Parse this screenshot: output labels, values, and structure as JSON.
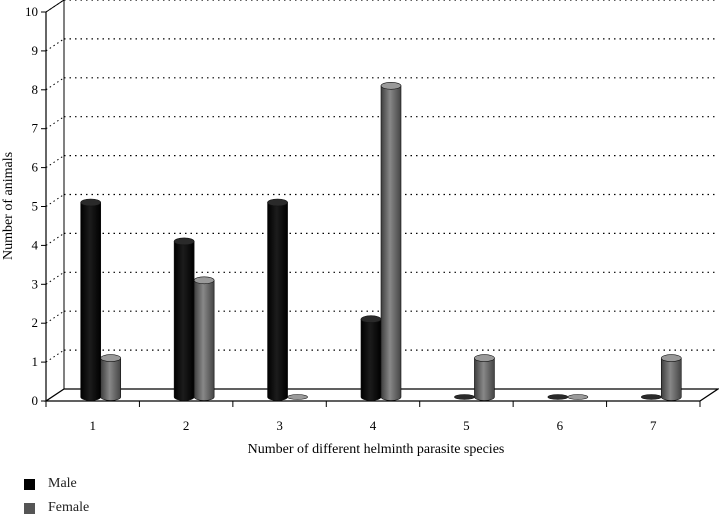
{
  "chart_data": {
    "type": "bar",
    "style": "3d-cylinder",
    "title": "",
    "xlabel": "Number of different helminth parasite species",
    "ylabel": "Number of animals",
    "categories": [
      "1",
      "2",
      "3",
      "4",
      "5",
      "6",
      "7"
    ],
    "series": [
      {
        "name": "Male",
        "values": [
          5,
          4,
          5,
          2,
          0,
          0,
          0
        ],
        "color": "#000000"
      },
      {
        "name": "Female",
        "values": [
          1,
          3,
          0,
          8,
          1,
          0,
          1
        ],
        "color": "#555555"
      }
    ],
    "ylim": [
      0,
      10
    ],
    "yticks": [
      "0",
      "1",
      "2",
      "3",
      "4",
      "5",
      "6",
      "7",
      "8",
      "9",
      "10"
    ],
    "grid": true,
    "legend_position": "bottom-left"
  }
}
